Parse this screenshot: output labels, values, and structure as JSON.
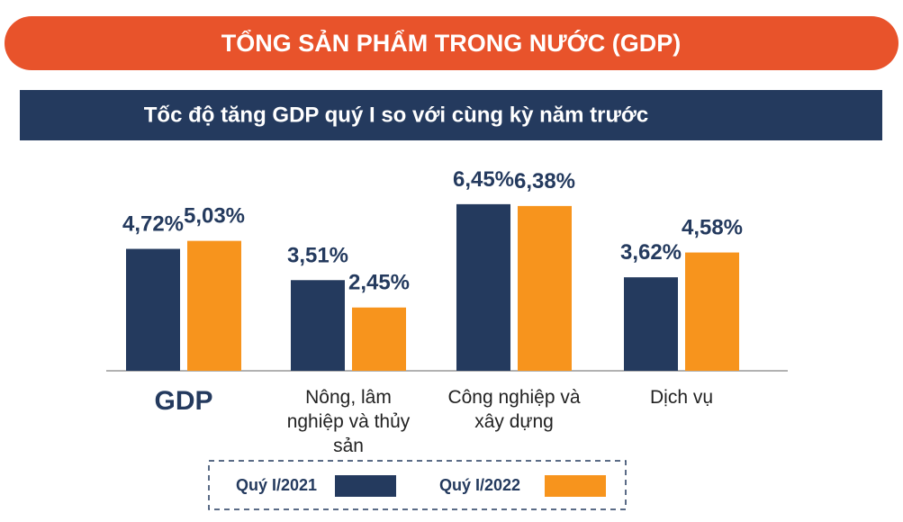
{
  "chart_data": {
    "type": "bar",
    "title": "TỔNG SẢN PHẨM TRONG NƯỚC (GDP)",
    "subtitle": "Tốc độ tăng GDP quý I so với cùng kỳ năm trước",
    "categories": [
      "GDP",
      "Nông, lâm nghiệp và thủy sản",
      "Công nghiệp và xây dựng",
      "Dịch vụ"
    ],
    "series": [
      {
        "name": "Quý I/2021",
        "color": "#243a5e",
        "values": [
          4.72,
          3.51,
          6.45,
          3.62
        ],
        "value_labels": [
          "4,72%",
          "3,51%",
          "6,45%",
          "3,62%"
        ]
      },
      {
        "name": "Quý I/2022",
        "color": "#f7941d",
        "values": [
          5.03,
          2.45,
          6.38,
          4.58
        ],
        "value_labels": [
          "5,03%",
          "2,45%",
          "6,38%",
          "4,58%"
        ]
      }
    ]
  }
}
